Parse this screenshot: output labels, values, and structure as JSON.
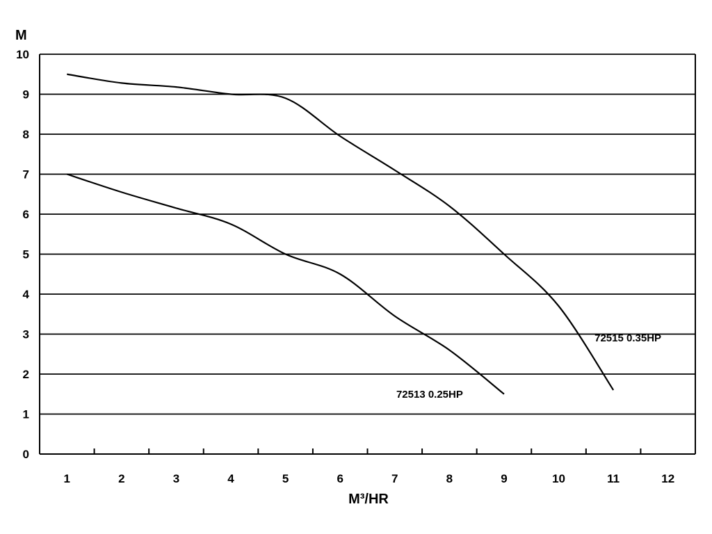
{
  "chart_data": {
    "type": "line",
    "title": "",
    "xlabel": "M³/HR",
    "ylabel": "M",
    "xlim": [
      0.5,
      12.5
    ],
    "ylim": [
      0,
      10
    ],
    "x_ticks": [
      "1",
      "2",
      "3",
      "4",
      "5",
      "6",
      "7",
      "8",
      "9",
      "10",
      "11",
      "12"
    ],
    "y_ticks": [
      "0",
      "1",
      "2",
      "3",
      "4",
      "5",
      "6",
      "7",
      "8",
      "9",
      "10"
    ],
    "grid": "horizontal",
    "series": [
      {
        "name": "72513 0.25HP",
        "points": [
          [
            1,
            7.0
          ],
          [
            2,
            6.55
          ],
          [
            3,
            6.15
          ],
          [
            4,
            5.75
          ],
          [
            5,
            5.0
          ],
          [
            6,
            4.5
          ],
          [
            7,
            3.45
          ],
          [
            8,
            2.6
          ],
          [
            9,
            1.5
          ]
        ]
      },
      {
        "name": "72515 0.35HP",
        "points": [
          [
            1,
            9.5
          ],
          [
            2,
            9.28
          ],
          [
            3,
            9.18
          ],
          [
            4,
            9.0
          ],
          [
            5,
            8.9
          ],
          [
            6,
            7.95
          ],
          [
            7,
            7.1
          ],
          [
            8,
            6.2
          ],
          [
            9,
            5.0
          ],
          [
            10,
            3.7
          ],
          [
            11,
            1.6
          ]
        ]
      }
    ]
  }
}
